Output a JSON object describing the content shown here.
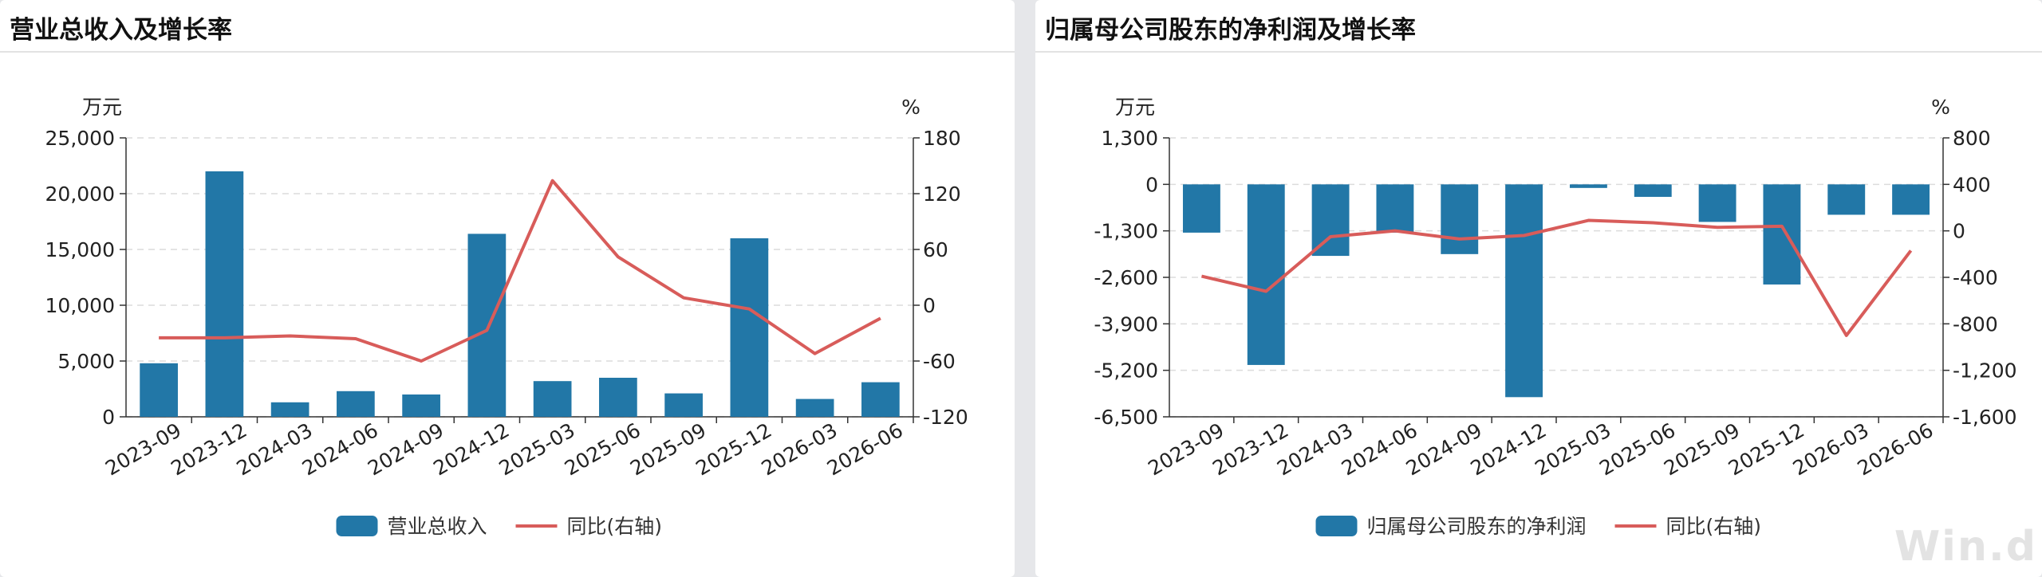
{
  "watermark": "Win.d",
  "colors": {
    "bar": "#2277a7",
    "line": "#d85c5a",
    "grid": "#dcdcdc",
    "axis": "#333333"
  },
  "chart_data": [
    {
      "type": "bar",
      "title": "营业总收入及增长率",
      "left_unit": "万元",
      "right_unit": "%",
      "categories": [
        "2023-09",
        "2023-12",
        "2024-03",
        "2024-06",
        "2024-09",
        "2024-12",
        "2025-03",
        "2025-06",
        "2025-09",
        "2025-12",
        "2026-03",
        "2026-06"
      ],
      "left_ylim": [
        0,
        25000
      ],
      "left_ticks": [
        0,
        5000,
        10000,
        15000,
        20000,
        25000
      ],
      "left_tick_labels": [
        "0",
        "5,000",
        "10,000",
        "15,000",
        "20,000",
        "25,000"
      ],
      "right_ylim": [
        -120,
        180
      ],
      "right_ticks": [
        -120,
        -60,
        0,
        60,
        120,
        180
      ],
      "right_tick_labels": [
        "-120",
        "-60",
        "0",
        "60",
        "120",
        "180"
      ],
      "grid": true,
      "legend_position": "bottom",
      "series": [
        {
          "name": "营业总收入",
          "type": "bar",
          "axis": "left",
          "values": [
            4800,
            22000,
            1300,
            2300,
            2000,
            16400,
            3200,
            3500,
            2100,
            16000,
            1600,
            3100
          ]
        },
        {
          "name": "同比(右轴)",
          "type": "line",
          "axis": "right",
          "values": [
            -35,
            -35,
            -33,
            -36,
            -60,
            -27,
            134,
            52,
            8,
            -4,
            -52,
            -14
          ]
        }
      ]
    },
    {
      "type": "bar",
      "title": "归属母公司股东的净利润及增长率",
      "left_unit": "万元",
      "right_unit": "%",
      "categories": [
        "2023-09",
        "2023-12",
        "2024-03",
        "2024-06",
        "2024-09",
        "2024-12",
        "2025-03",
        "2025-06",
        "2025-09",
        "2025-12",
        "2026-03",
        "2026-06"
      ],
      "left_ylim": [
        -6500,
        1300
      ],
      "left_ticks": [
        -6500,
        -5200,
        -3900,
        -2600,
        -1300,
        0,
        1300
      ],
      "left_tick_labels": [
        "-6,500",
        "-5,200",
        "-3,900",
        "-2,600",
        "-1,300",
        "0",
        "1,300"
      ],
      "right_ylim": [
        -1600,
        800
      ],
      "right_ticks": [
        -1600,
        -1200,
        -800,
        -400,
        0,
        400,
        800
      ],
      "right_tick_labels": [
        "-1,600",
        "-1,200",
        "-800",
        "-400",
        "0",
        "400",
        "800"
      ],
      "grid": true,
      "legend_position": "bottom",
      "series": [
        {
          "name": "归属母公司股东的净利润",
          "type": "bar",
          "axis": "left",
          "values": [
            -1350,
            -5050,
            -2000,
            -1350,
            -1950,
            -5950,
            -100,
            -350,
            -1050,
            -2800,
            -850,
            -850
          ]
        },
        {
          "name": "同比(右轴)",
          "type": "line",
          "axis": "right",
          "values": [
            -390,
            -520,
            -50,
            0,
            -70,
            -40,
            90,
            70,
            30,
            40,
            -900,
            -170
          ]
        }
      ]
    }
  ]
}
